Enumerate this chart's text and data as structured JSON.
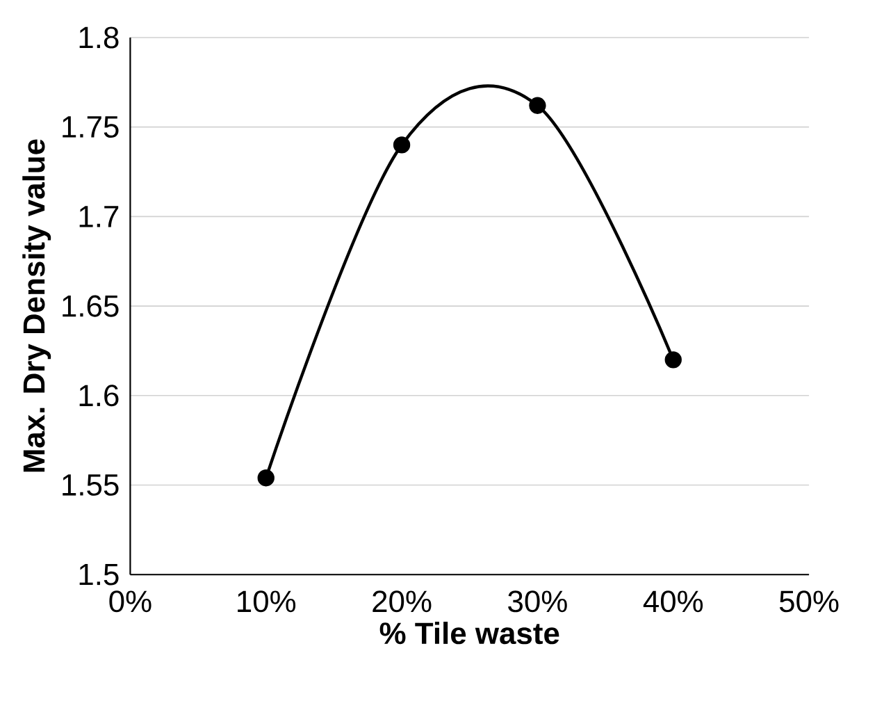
{
  "chart_data": {
    "type": "line",
    "xlabel": "% Tile waste",
    "ylabel": "Max. Dry Density value",
    "x": [
      10,
      20,
      30,
      40
    ],
    "series": [
      {
        "color": "#000000",
        "values": [
          1.554,
          1.74,
          1.762,
          1.62
        ]
      }
    ],
    "xlim": [
      0,
      50
    ],
    "xticks": [
      {
        "value": 0,
        "label": "0%"
      },
      {
        "value": 10,
        "label": "10%"
      },
      {
        "value": 20,
        "label": "20%"
      },
      {
        "value": 30,
        "label": "30%"
      },
      {
        "value": 40,
        "label": "40%"
      },
      {
        "value": 50,
        "label": "50%"
      }
    ],
    "ylim": [
      1.5,
      1.8
    ],
    "yticks": [
      1.5,
      1.55,
      1.6,
      1.65,
      1.7,
      1.75,
      1.8
    ],
    "grid": "y",
    "marker": "circle",
    "line_style": "solid"
  }
}
